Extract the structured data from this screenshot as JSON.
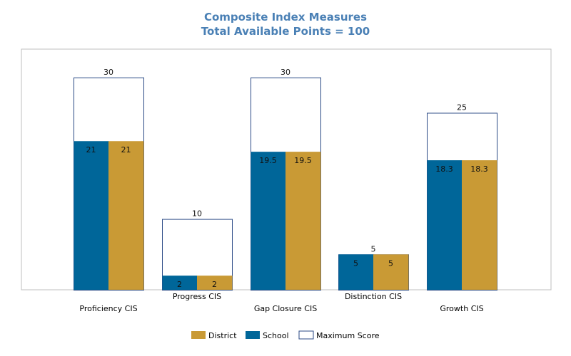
{
  "colors": {
    "district": "#c99a35",
    "school": "#006699",
    "maximum": "#ffffff",
    "outline": "#2b4a86",
    "title": "#4a80b5",
    "frame": "#bfbfbf"
  },
  "chart_data": {
    "type": "bar",
    "title": "Composite Index Measures",
    "subtitle": "Total Available Points = 100",
    "categories": [
      "Proficiency CIS",
      "Progress CIS",
      "Gap Closure CIS",
      "Distinction CIS",
      "Growth CIS"
    ],
    "series": [
      {
        "name": "District",
        "values": [
          21,
          2,
          19.5,
          5,
          18.3
        ]
      },
      {
        "name": "School",
        "values": [
          21,
          2,
          19.5,
          5,
          18.3
        ]
      },
      {
        "name": "Maximum Score",
        "values": [
          30,
          10,
          30,
          5,
          25
        ]
      }
    ],
    "ylim": [
      0,
      34
    ],
    "grid": false,
    "legend_position": "bottom"
  }
}
